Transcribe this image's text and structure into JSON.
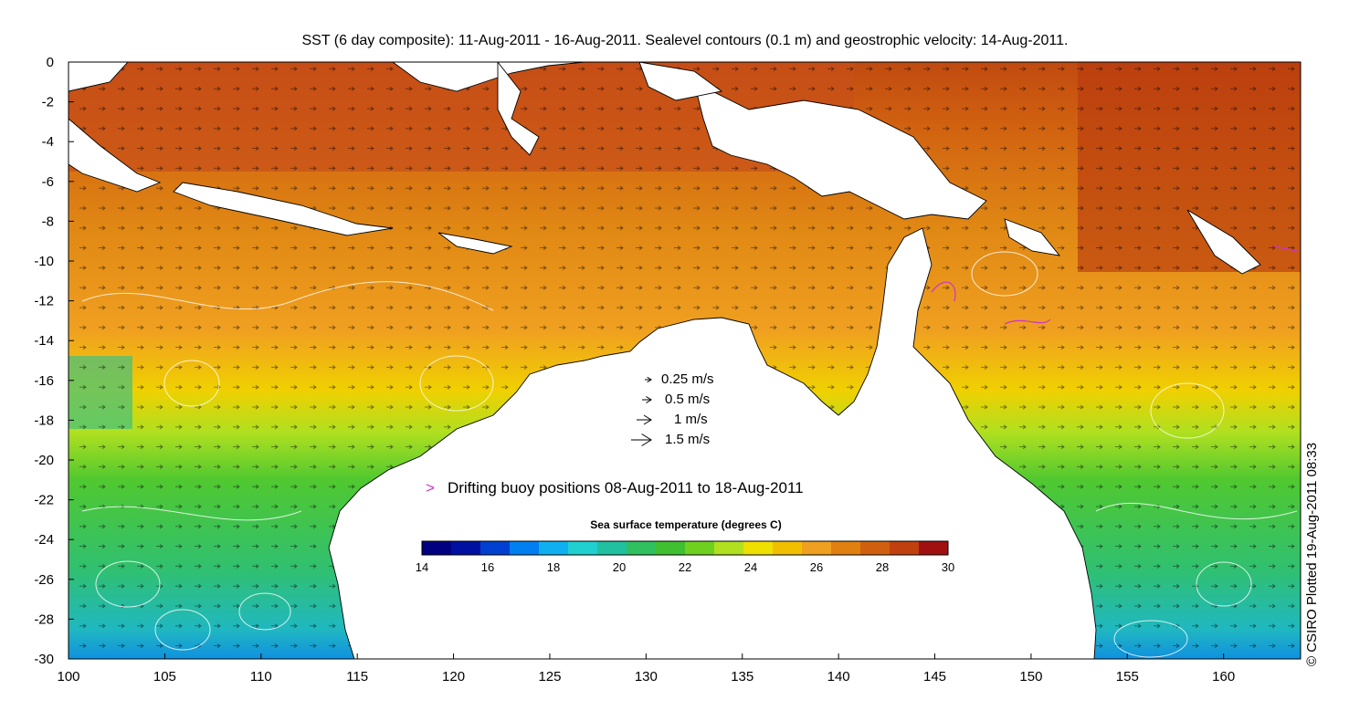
{
  "title": "SST (6 day composite): 11-Aug-2011 - 16-Aug-2011. Sealevel contours (0.1 m) and geostrophic velocity: 14-Aug-2011.",
  "credit": "© CSIRO Plotted 19-Aug-2011 08:33",
  "axes": {
    "x_ticks": [
      "100",
      "105",
      "110",
      "115",
      "120",
      "125",
      "130",
      "135",
      "140",
      "145",
      "150",
      "155",
      "160"
    ],
    "y_ticks": [
      "0",
      "-2",
      "-4",
      "-6",
      "-8",
      "-10",
      "-12",
      "-14",
      "-16",
      "-18",
      "-20",
      "-22",
      "-24",
      "-26",
      "-28",
      "-30"
    ],
    "lon_range": [
      100,
      164
    ],
    "lat_range": [
      -30,
      0
    ]
  },
  "velocity_legend": [
    {
      "label": "0.25 m/s",
      "speed": 0.25
    },
    {
      "label": "0.5 m/s",
      "speed": 0.5
    },
    {
      "label": "1 m/s",
      "speed": 1
    },
    {
      "label": "1.5 m/s",
      "speed": 1.5
    }
  ],
  "buoy_legend": {
    "marker": ">",
    "label": "Drifting buoy positions 08-Aug-2011 to 18-Aug-2011",
    "color": "#cc33cc"
  },
  "colorbar": {
    "title": "Sea surface temperature (degrees C)",
    "ticks": [
      "14",
      "16",
      "18",
      "20",
      "22",
      "24",
      "26",
      "28",
      "30"
    ],
    "range": [
      14,
      30
    ],
    "colors": [
      "#000080",
      "#0010a0",
      "#0040d0",
      "#0080f0",
      "#10b0f0",
      "#20d0d0",
      "#20c0a0",
      "#30c060",
      "#40c030",
      "#70d020",
      "#b0e020",
      "#f0e000",
      "#f0c000",
      "#f0a020",
      "#e08010",
      "#d06010",
      "#c04010",
      "#a01010"
    ]
  },
  "land_color": "#ffffff",
  "coastline_color": "#000000",
  "contour_color": "#ffffff",
  "vector_color": "#000000"
}
